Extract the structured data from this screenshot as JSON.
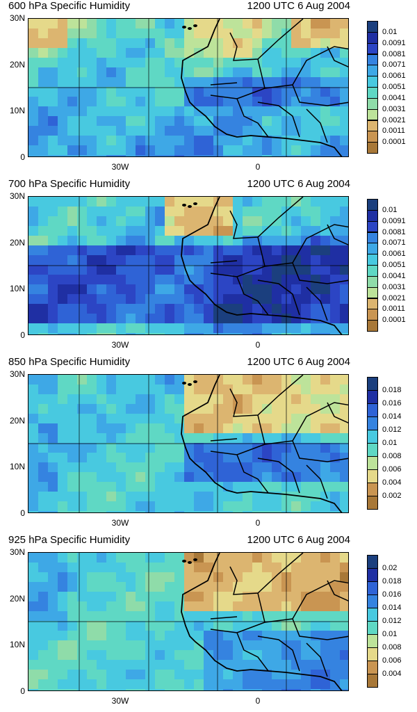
{
  "panels": [
    {
      "title": "600 hPa Specific Humidity",
      "time": "1200 UTC 6 Aug 2004",
      "lat_ticks": [
        "30N",
        "20N",
        "10N",
        "0"
      ],
      "lon_ticks": [
        "30W",
        "0"
      ],
      "colorbar_labels": [
        "0.01",
        "0.0091",
        "0.0081",
        "0.0071",
        "0.0061",
        "0.0051",
        "0.0041",
        "0.0031",
        "0.0021",
        "0.0011",
        "0.0001"
      ],
      "field": "moist-mid"
    },
    {
      "title": "700 hPa Specific Humidity",
      "time": "1200 UTC 6 Aug 2004",
      "lat_ticks": [
        "30N",
        "20N",
        "10N",
        "0"
      ],
      "lon_ticks": [
        "30W",
        "0"
      ],
      "colorbar_labels": [
        "0.01",
        "0.0091",
        "0.0081",
        "0.0071",
        "0.0061",
        "0.0051",
        "0.0041",
        "0.0031",
        "0.0021",
        "0.0011",
        "0.0001"
      ],
      "field": "very-moist"
    },
    {
      "title": "850 hPa Specific Humidity",
      "time": "1200 UTC 6 Aug 2004",
      "lat_ticks": [
        "30N",
        "20N",
        "10N",
        "0"
      ],
      "lon_ticks": [
        "30W",
        "0"
      ],
      "colorbar_labels": [
        "0.018",
        "0.016",
        "0.014",
        "0.012",
        "0.01",
        "0.008",
        "0.006",
        "0.004",
        "0.002"
      ],
      "field": "low-level"
    },
    {
      "title": "925 hPa Specific Humidity",
      "time": "1200 UTC 6 Aug 2004",
      "lat_ticks": [
        "30N",
        "20N",
        "10N",
        "0"
      ],
      "lon_ticks": [
        "30W",
        "0"
      ],
      "colorbar_labels": [
        "0.02",
        "0.018",
        "0.016",
        "0.014",
        "0.012",
        "0.01",
        "0.008",
        "0.006",
        "0.004"
      ],
      "field": "surface"
    }
  ],
  "colors": {
    "scale": [
      "#1b3f7e",
      "#1f2fa3",
      "#2c45c4",
      "#2f63d6",
      "#3583e0",
      "#3ea8e6",
      "#48c9e0",
      "#5fd8c4",
      "#8fdca9",
      "#bde39a",
      "#e5d98a",
      "#dcb570",
      "#c99552",
      "#a87838"
    ],
    "map_lines": "#000000"
  }
}
